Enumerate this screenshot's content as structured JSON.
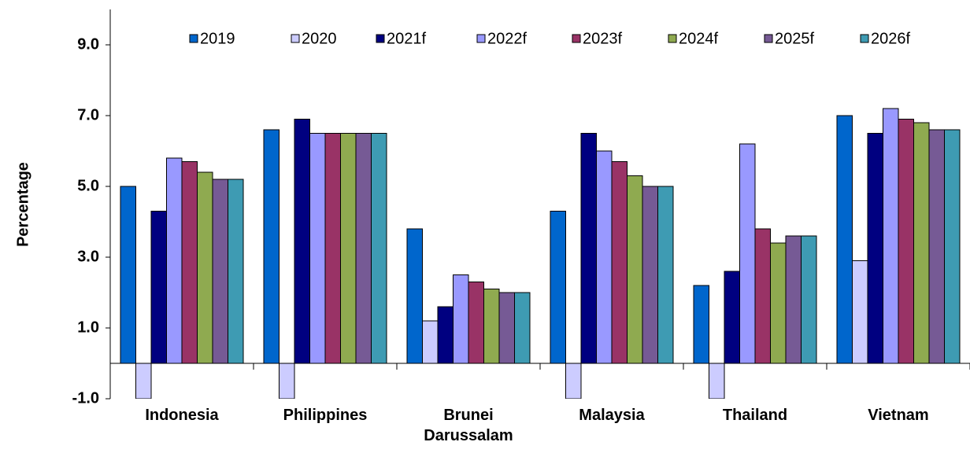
{
  "chart_data": {
    "type": "bar",
    "y_label": "Percentage",
    "categories": [
      "Indonesia",
      "Philippines",
      "Brunei Darussalam",
      "Malaysia",
      "Thailand",
      "Vietnam"
    ],
    "series": [
      {
        "name": "2019",
        "color": "#0066cc",
        "values": [
          5.0,
          6.6,
          3.8,
          4.3,
          2.2,
          7.0
        ]
      },
      {
        "name": "2020",
        "color": "#ccccff",
        "values": [
          -1.0,
          -1.0,
          1.2,
          -1.0,
          -1.0,
          2.9
        ]
      },
      {
        "name": "2021f",
        "color": "#000080",
        "values": [
          4.3,
          6.9,
          1.6,
          6.5,
          2.6,
          6.5
        ]
      },
      {
        "name": "2022f",
        "color": "#9999ff",
        "values": [
          5.8,
          6.5,
          2.5,
          6.0,
          6.2,
          7.2
        ]
      },
      {
        "name": "2023f",
        "color": "#993366",
        "values": [
          5.7,
          6.5,
          2.3,
          5.7,
          3.8,
          6.9
        ]
      },
      {
        "name": "2024f",
        "color": "#8faa50",
        "values": [
          5.4,
          6.5,
          2.1,
          5.3,
          3.4,
          6.8
        ]
      },
      {
        "name": "2025f",
        "color": "#765a95",
        "values": [
          5.2,
          6.5,
          2.0,
          5.0,
          3.6,
          6.6
        ]
      },
      {
        "name": "2026f",
        "color": "#3e9bb3",
        "values": [
          5.2,
          6.5,
          2.0,
          5.0,
          3.6,
          6.6
        ]
      }
    ],
    "ylim": [
      -1,
      10
    ],
    "yticks": [
      {
        "value": -1,
        "label": "-1.0"
      },
      {
        "value": 1,
        "label": "1.0"
      },
      {
        "value": 3,
        "label": "3.0"
      },
      {
        "value": 5,
        "label": "5.0"
      },
      {
        "value": 7,
        "label": "7.0"
      },
      {
        "value": 9,
        "label": "9.0"
      }
    ],
    "grid": false
  }
}
